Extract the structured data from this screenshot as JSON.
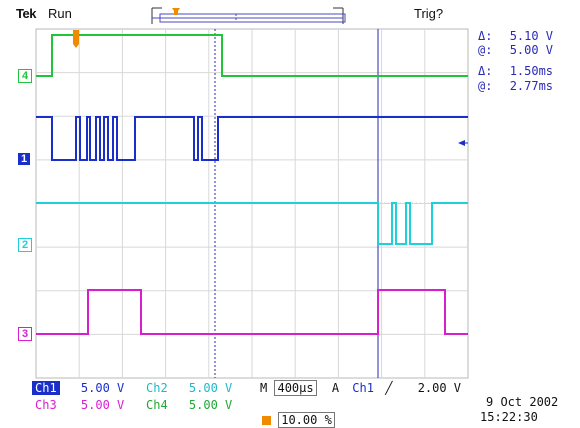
{
  "header": {
    "brand": "Tek",
    "run_state": "Run",
    "trigger_status": "Trig?"
  },
  "measurements": {
    "voltage_delta_label": "Δ:",
    "voltage_delta": "5.10 V",
    "voltage_at_label": "@:",
    "voltage_at": "5.00 V",
    "time_delta_label": "Δ:",
    "time_delta": "1.50ms",
    "time_at_label": "@:",
    "time_at": "2.77ms"
  },
  "channels": [
    {
      "id": "4",
      "color": "#22c43a"
    },
    {
      "id": "1",
      "color": "#1a2fc9"
    },
    {
      "id": "2",
      "color": "#1fd0dc"
    },
    {
      "id": "3",
      "color": "#d81fd0"
    }
  ],
  "status": {
    "ch1_label": "Ch1",
    "ch1_scale": "5.00 V",
    "ch2_label": "Ch2",
    "ch2_scale": "5.00 V",
    "ch3_label": "Ch3",
    "ch3_scale": "5.00 V",
    "ch4_label": "Ch4",
    "ch4_scale": "5.00 V",
    "timebase_label": "M",
    "timebase": "400µs",
    "trigger_mode": "A",
    "trigger_source": "Ch1",
    "trigger_slope": "rising-edge-icon",
    "trigger_level": "2.00 V",
    "position": "10.00 %"
  },
  "timestamp": {
    "date": "9 Oct  2002",
    "time": "15:22:30"
  }
}
